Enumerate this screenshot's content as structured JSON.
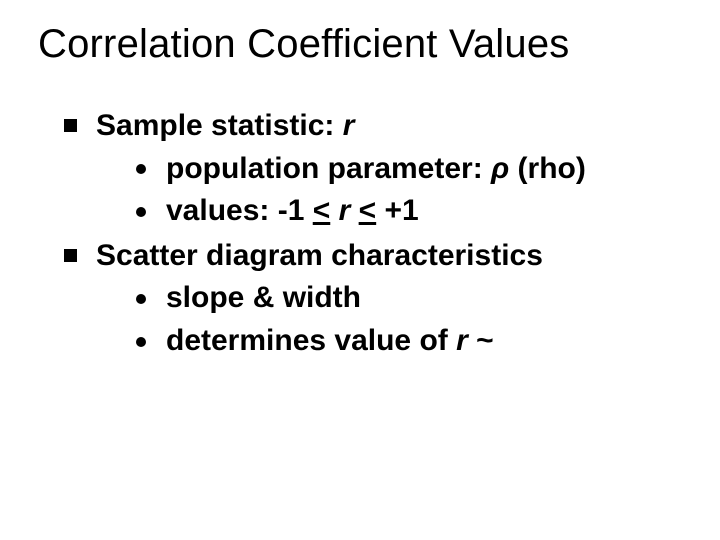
{
  "colors": {
    "background": "#ffffff",
    "text": "#000000",
    "bullet": "#000000"
  },
  "typography": {
    "title_fontsize": 40,
    "title_weight": 400,
    "body_fontsize": 30,
    "body_weight": 700,
    "font_family": "Arial"
  },
  "title": "Correlation Coefficient Values",
  "bullets": {
    "b0": {
      "prefix": "Sample statistic:  ",
      "symbol": "r",
      "sub": {
        "s0": {
          "prefix": "population parameter: ",
          "symbol": "ρ",
          "suffix": "  (rho)"
        },
        "s1": {
          "prefix": "values: -1  ",
          "le1": "<",
          "mid": "  ",
          "r": "r",
          "mid2": "  ",
          "le2": "<",
          "suffix": "  +1"
        }
      }
    },
    "b1": {
      "text": "Scatter diagram characteristics",
      "sub": {
        "s0": {
          "text": "slope & width"
        },
        "s1": {
          "prefix": "determines value of ",
          "symbol": "r",
          "suffix": "  ~"
        }
      }
    }
  }
}
